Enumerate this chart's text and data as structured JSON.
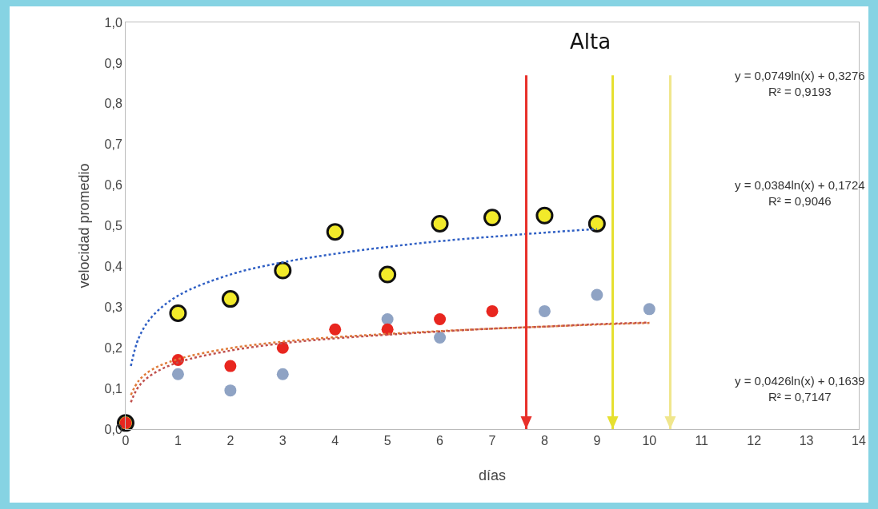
{
  "chart_data": {
    "type": "scatter",
    "xlabel": "días",
    "ylabel": "velocidad promedio",
    "x": [
      0,
      1,
      2,
      3,
      4,
      5,
      6,
      7,
      8,
      9,
      10
    ],
    "series": [
      {
        "color": "#8fa3c4",
        "values": [
          null,
          0.135,
          0.095,
          0.135,
          null,
          0.27,
          0.225,
          null,
          0.29,
          0.33,
          0.295
        ]
      },
      {
        "color": "#e8261f",
        "values": [
          0.015,
          0.17,
          0.155,
          0.2,
          0.245,
          0.245,
          0.27,
          0.29,
          null,
          null,
          null
        ]
      },
      {
        "color": "#f2ea2a",
        "values": [
          0.015,
          0.285,
          0.32,
          0.39,
          0.485,
          0.38,
          0.505,
          0.52,
          0.525,
          0.505,
          null
        ]
      },
      {
        "type": "line",
        "marker": "none",
        "line_style": "dotted",
        "color": "#2f5fc4",
        "x": [
          0.1,
          0.25,
          0.5,
          1,
          2,
          3,
          4,
          5,
          6,
          7,
          8,
          9
        ],
        "values": [
          0.155,
          0.224,
          0.276,
          0.328,
          0.38,
          0.41,
          0.431,
          0.448,
          0.462,
          0.473,
          0.483,
          0.492
        ]
      },
      {
        "type": "line",
        "marker": "none",
        "line_style": "dotted",
        "color": "#e07b39",
        "x": [
          0.1,
          0.25,
          0.5,
          1,
          2,
          3,
          4,
          5,
          6,
          7,
          8,
          9,
          10
        ],
        "values": [
          0.084,
          0.119,
          0.146,
          0.172,
          0.199,
          0.215,
          0.226,
          0.234,
          0.241,
          0.247,
          0.252,
          0.257,
          0.261
        ]
      },
      {
        "type": "line",
        "marker": "none",
        "line_style": "dotted",
        "color": "#c0504d",
        "x": [
          0.1,
          0.25,
          0.5,
          1,
          2,
          3,
          4,
          5,
          6,
          7,
          8,
          9,
          10
        ],
        "values": [
          0.066,
          0.105,
          0.134,
          0.164,
          0.193,
          0.211,
          0.223,
          0.232,
          0.24,
          0.247,
          0.252,
          0.258,
          0.262
        ]
      }
    ],
    "marker": "circle",
    "ref_lines": [
      {
        "axis": "x",
        "value": 7.65,
        "color": "#e8302a"
      },
      {
        "axis": "x",
        "value": 9.3,
        "color": "#e6e030",
        "label": "Alta"
      },
      {
        "axis": "x",
        "value": 10.4,
        "color": "#f0e68c"
      }
    ],
    "annotations": [
      "y = 0,0749ln(x) + 0,3276\nR² = 0,9193",
      "y = 0,0384ln(x) + 0,1724\nR² = 0,9046",
      "y = 0,0426ln(x) + 0,1639\nR² = 0,7147"
    ],
    "xlim": [
      0,
      14
    ],
    "xticks": [
      0,
      1,
      2,
      3,
      4,
      5,
      6,
      7,
      8,
      9,
      10,
      11,
      12,
      13,
      14
    ],
    "ylim": [
      0,
      1
    ],
    "yticks": [
      {
        "value": 0,
        "label": "0,0"
      },
      {
        "value": 0.1,
        "label": "0,1"
      },
      {
        "value": 0.2,
        "label": "0,2"
      },
      {
        "value": 0.3,
        "label": "0,3"
      },
      {
        "value": 0.4,
        "label": "0,4"
      },
      {
        "value": 0.5,
        "label": "0,5"
      },
      {
        "value": 0.6,
        "label": "0,6"
      },
      {
        "value": 0.7,
        "label": "0,7"
      },
      {
        "value": 0.8,
        "label": "0,8"
      },
      {
        "value": 0.9,
        "label": "0,9"
      },
      {
        "value": 1,
        "label": "1,0"
      }
    ],
    "grid": false
  }
}
